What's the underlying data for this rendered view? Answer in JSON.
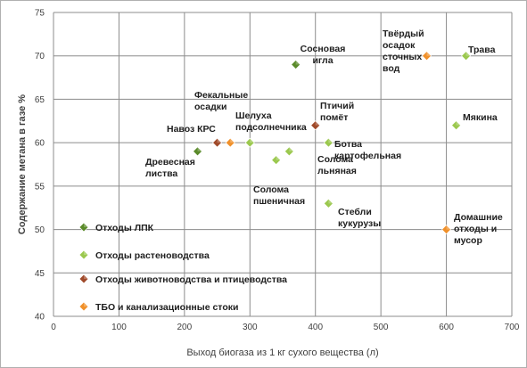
{
  "chart_data": {
    "type": "scatter",
    "title": "",
    "xlabel": "Выход биогаза из 1 кг сухого вещества (л)",
    "ylabel": "Содержание метана в газе %",
    "xlim": [
      0,
      700
    ],
    "ylim": [
      40,
      75
    ],
    "x_ticks": [
      0,
      100,
      200,
      300,
      400,
      500,
      600,
      700
    ],
    "y_ticks": [
      40,
      45,
      50,
      55,
      60,
      65,
      70,
      75
    ],
    "grid": true,
    "legend_position": "bottom-left",
    "series": [
      {
        "name": "Отходы ЛПК",
        "color": "#5a8a2a",
        "points": [
          {
            "x": 220,
            "y": 59,
            "label": "Древесная листва"
          },
          {
            "x": 370,
            "y": 69,
            "label": "Сосновая игла"
          }
        ]
      },
      {
        "name": "Отходы растеноводства",
        "color": "#9bc84e",
        "points": [
          {
            "x": 300,
            "y": 60,
            "label": "Шелуха подсолнечника"
          },
          {
            "x": 340,
            "y": 58,
            "label": "Солома пшеничная"
          },
          {
            "x": 360,
            "y": 59,
            "label": "Солома льняная"
          },
          {
            "x": 420,
            "y": 60,
            "label": "Ботва картофельная"
          },
          {
            "x": 420,
            "y": 53,
            "label": "Стебли кукурузы"
          },
          {
            "x": 615,
            "y": 62,
            "label": "Мякина"
          },
          {
            "x": 630,
            "y": 70,
            "label": "Трава"
          }
        ]
      },
      {
        "name": "Отходы животноводства и птицеводства",
        "color": "#a04a2a",
        "points": [
          {
            "x": 250,
            "y": 60,
            "label": "Навоз КРС"
          },
          {
            "x": 400,
            "y": 62,
            "label": "Птичий помёт"
          }
        ]
      },
      {
        "name": "ТБО и канализационные стоки",
        "color": "#f0902a",
        "points": [
          {
            "x": 270,
            "y": 60,
            "label": "Фекальные осадки"
          },
          {
            "x": 570,
            "y": 70,
            "label": "Твёрдый осадок сточных вод"
          },
          {
            "x": 600,
            "y": 50,
            "label": "Домашние отходы и мусор"
          }
        ]
      }
    ]
  }
}
